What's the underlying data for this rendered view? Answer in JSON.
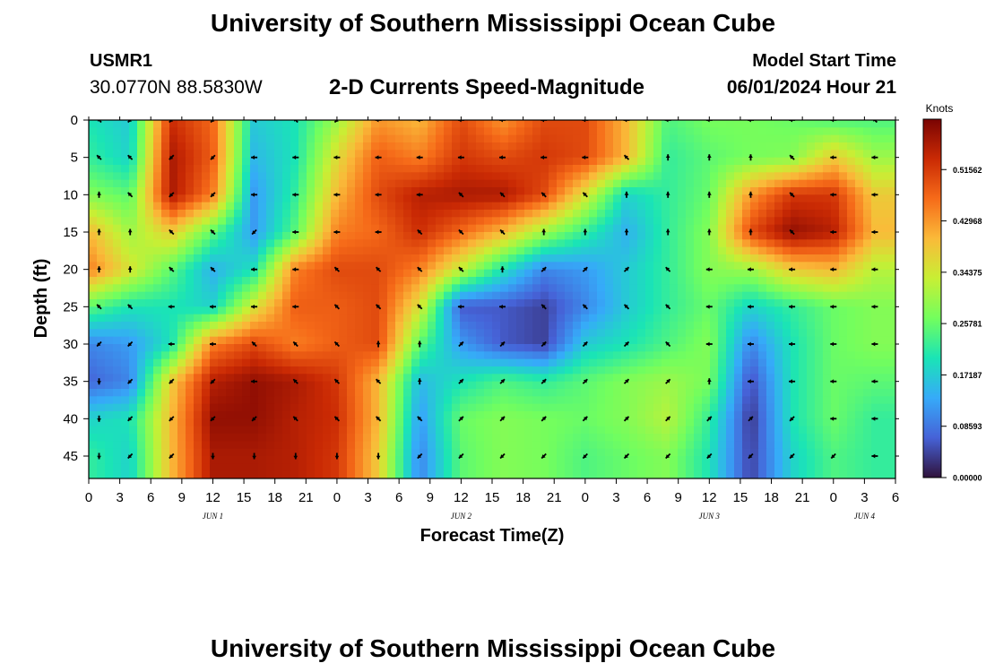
{
  "header": {
    "title": "University of Southern Mississippi Ocean Cube",
    "station_id": "USMR1",
    "station_coords": "30.0770N  88.5830W",
    "subtitle": "2-D Currents Speed-Magnitude",
    "model_start_label": "Model Start Time",
    "model_start_value": "06/01/2024 Hour 21"
  },
  "footer": {
    "title": "University of Southern Mississippi Ocean Cube"
  },
  "chart_data": {
    "type": "heatmap",
    "title": "2-D Currents Speed-Magnitude",
    "xlabel": "Forecast Time(Z)",
    "ylabel": "Depth (ft)",
    "x_ticks": [
      "0",
      "3",
      "6",
      "9",
      "12",
      "15",
      "18",
      "21",
      "0",
      "3",
      "6",
      "9",
      "12",
      "15",
      "18",
      "21",
      "0",
      "3",
      "6",
      "9",
      "12",
      "15",
      "18",
      "21",
      "0",
      "3",
      "6"
    ],
    "x_day_labels": [
      {
        "label": "JUN 1",
        "hour": 12
      },
      {
        "label": "JUN 2",
        "hour": 36
      },
      {
        "label": "JUN 3",
        "hour": 60
      },
      {
        "label": "JUN 4",
        "hour": 75
      }
    ],
    "xlim_hours": [
      0,
      78
    ],
    "y_ticks": [
      0,
      5,
      10,
      15,
      20,
      25,
      30,
      35,
      40,
      45
    ],
    "ylim_ft": [
      0,
      48
    ],
    "colorbar": {
      "title": "Knots",
      "ticks": [
        "0.00000",
        "0.08593",
        "0.17187",
        "0.25781",
        "0.34375",
        "0.42968",
        "0.51562"
      ],
      "range": [
        0.0,
        0.6
      ]
    },
    "colors": {
      "scale": [
        "#30123b",
        "#4662d7",
        "#36aaf9",
        "#1ae4b6",
        "#72fe5e",
        "#c8ef34",
        "#faba39",
        "#f66b19",
        "#ca2a04",
        "#7a0403"
      ],
      "arrow": "#000000"
    },
    "speed_grid_hours": [
      0,
      4,
      8,
      12,
      16,
      20,
      24,
      28,
      32,
      36,
      40,
      44,
      48,
      52,
      56,
      60,
      64,
      68,
      72,
      76
    ],
    "speed_grid_depths_ft": [
      0,
      5,
      10,
      15,
      20,
      25,
      30,
      35,
      40,
      45
    ],
    "speed_knots": [
      [
        0.2,
        0.17,
        0.53,
        0.47,
        0.17,
        0.2,
        0.3,
        0.43,
        0.4,
        0.5,
        0.43,
        0.5,
        0.5,
        0.4,
        0.24,
        0.27,
        0.27,
        0.26,
        0.24,
        0.24
      ],
      [
        0.22,
        0.18,
        0.56,
        0.48,
        0.15,
        0.2,
        0.36,
        0.48,
        0.45,
        0.52,
        0.5,
        0.52,
        0.5,
        0.4,
        0.22,
        0.25,
        0.27,
        0.28,
        0.38,
        0.3
      ],
      [
        0.28,
        0.25,
        0.56,
        0.45,
        0.12,
        0.22,
        0.4,
        0.5,
        0.55,
        0.56,
        0.56,
        0.5,
        0.35,
        0.18,
        0.22,
        0.26,
        0.43,
        0.52,
        0.52,
        0.38
      ],
      [
        0.4,
        0.3,
        0.38,
        0.25,
        0.12,
        0.25,
        0.45,
        0.47,
        0.53,
        0.47,
        0.4,
        0.3,
        0.22,
        0.14,
        0.22,
        0.28,
        0.5,
        0.58,
        0.55,
        0.4
      ],
      [
        0.45,
        0.35,
        0.25,
        0.14,
        0.2,
        0.45,
        0.5,
        0.5,
        0.45,
        0.33,
        0.2,
        0.1,
        0.12,
        0.17,
        0.22,
        0.28,
        0.3,
        0.38,
        0.4,
        0.32
      ],
      [
        0.25,
        0.2,
        0.2,
        0.18,
        0.35,
        0.48,
        0.48,
        0.5,
        0.35,
        0.06,
        0.06,
        0.04,
        0.1,
        0.17,
        0.22,
        0.26,
        0.18,
        0.22,
        0.26,
        0.28
      ],
      [
        0.1,
        0.12,
        0.2,
        0.45,
        0.5,
        0.45,
        0.48,
        0.5,
        0.25,
        0.12,
        0.06,
        0.04,
        0.17,
        0.2,
        0.24,
        0.28,
        0.1,
        0.2,
        0.26,
        0.28
      ],
      [
        0.07,
        0.1,
        0.38,
        0.55,
        0.58,
        0.56,
        0.52,
        0.4,
        0.15,
        0.2,
        0.24,
        0.22,
        0.25,
        0.28,
        0.3,
        0.27,
        0.05,
        0.2,
        0.26,
        0.25
      ],
      [
        0.18,
        0.2,
        0.4,
        0.58,
        0.58,
        0.55,
        0.53,
        0.4,
        0.12,
        0.26,
        0.28,
        0.27,
        0.26,
        0.28,
        0.32,
        0.22,
        0.03,
        0.2,
        0.26,
        0.22
      ],
      [
        0.22,
        0.18,
        0.4,
        0.56,
        0.56,
        0.55,
        0.52,
        0.38,
        0.1,
        0.25,
        0.28,
        0.27,
        0.24,
        0.26,
        0.28,
        0.2,
        0.04,
        0.18,
        0.24,
        0.22
      ]
    ],
    "arrow_hours": [
      1,
      4,
      8,
      12,
      16,
      20,
      24,
      28,
      32,
      36,
      40,
      44,
      48,
      52,
      56,
      60,
      64,
      68,
      72,
      76
    ],
    "arrow_depths_ft": [
      0,
      5,
      10,
      15,
      20,
      25,
      30,
      35,
      40,
      45
    ],
    "arrow_direction_deg": [
      [
        225,
        135,
        135,
        135,
        225,
        225,
        135,
        180,
        180,
        180,
        180,
        180,
        180,
        180,
        180,
        180,
        180,
        180,
        180,
        225
      ],
      [
        225,
        225,
        135,
        135,
        180,
        180,
        180,
        180,
        180,
        180,
        180,
        180,
        180,
        225,
        270,
        270,
        270,
        225,
        180,
        180
      ],
      [
        270,
        225,
        135,
        135,
        180,
        180,
        180,
        180,
        180,
        225,
        225,
        225,
        225,
        270,
        270,
        270,
        270,
        225,
        180,
        180
      ],
      [
        270,
        270,
        225,
        225,
        135,
        180,
        180,
        180,
        225,
        225,
        225,
        270,
        270,
        270,
        270,
        270,
        270,
        225,
        180,
        180
      ],
      [
        270,
        270,
        225,
        225,
        180,
        180,
        225,
        225,
        225,
        225,
        270,
        315,
        315,
        315,
        225,
        180,
        180,
        180,
        180,
        180
      ],
      [
        225,
        225,
        180,
        180,
        180,
        180,
        225,
        225,
        225,
        180,
        180,
        225,
        225,
        225,
        225,
        180,
        180,
        180,
        180,
        180
      ],
      [
        135,
        135,
        180,
        180,
        225,
        225,
        225,
        270,
        270,
        315,
        315,
        315,
        315,
        315,
        225,
        180,
        180,
        180,
        180,
        180
      ],
      [
        90,
        135,
        135,
        135,
        180,
        225,
        225,
        225,
        270,
        315,
        315,
        315,
        315,
        315,
        315,
        270,
        180,
        180,
        180,
        180
      ],
      [
        90,
        135,
        135,
        135,
        135,
        225,
        225,
        225,
        225,
        315,
        315,
        315,
        315,
        315,
        315,
        315,
        315,
        135,
        180,
        180
      ],
      [
        90,
        135,
        135,
        90,
        90,
        90,
        90,
        90,
        135,
        135,
        135,
        135,
        135,
        135,
        135,
        135,
        135,
        135,
        135,
        180
      ]
    ]
  }
}
